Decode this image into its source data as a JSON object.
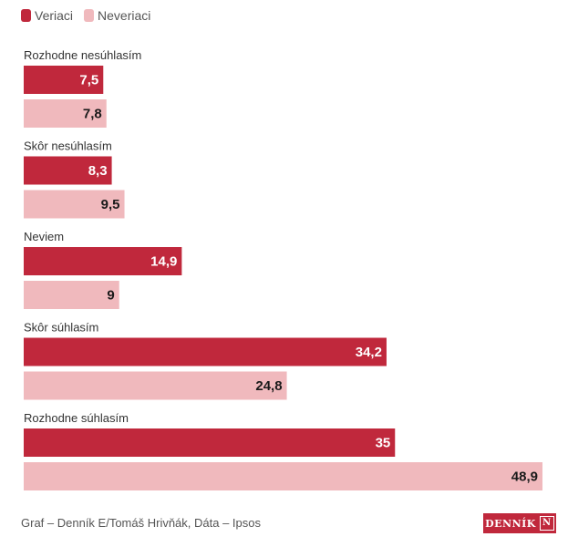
{
  "chart_data": {
    "type": "bar",
    "orientation": "horizontal",
    "categories": [
      "Rozhodne nesúhlasím",
      "Skôr nesúhlasím",
      "Neviem",
      "Skôr súhlasím",
      "Rozhodne súhlasím"
    ],
    "series": [
      {
        "name": "Veriaci",
        "values": [
          7.5,
          8.3,
          14.9,
          34.2,
          35
        ],
        "labels": [
          "7,5",
          "8,3",
          "14,9",
          "34,2",
          "35"
        ],
        "color": "#c0283c",
        "label_color": "#ffffff"
      },
      {
        "name": "Neveriaci",
        "values": [
          7.8,
          9.5,
          9,
          24.8,
          48.9
        ],
        "labels": [
          "7,8",
          "9,5",
          "9",
          "24,8",
          "48,9"
        ],
        "color": "#f0b9bd",
        "label_color": "#1a1a1a"
      }
    ],
    "xlim": [
      0,
      48.9
    ],
    "legend": "top-left",
    "grid": false
  },
  "footer": {
    "source": "Graf – Denník E/Tomáš Hrivňák, Dáta – Ipsos",
    "logo_text": "DENNÍK",
    "logo_mark": "N"
  }
}
